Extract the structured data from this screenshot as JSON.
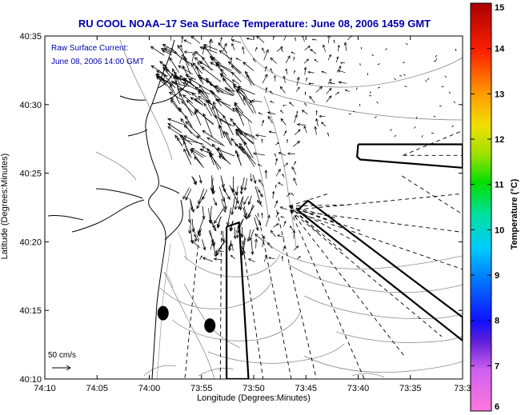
{
  "chart_data": {
    "type": "map",
    "title": "RU COOL  NOAA–17  Sea Surface Temperature:  June 08, 2006 1459 GMT",
    "annotation": [
      "Raw Surface Current:",
      "June 08, 2006 14:00 GMT"
    ],
    "xlabel": "Longitude (Degrees:Minutes)",
    "ylabel": "Latitude (Degrees:Minutes)",
    "x_ticks": [
      "74:10",
      "74:05",
      "74:00",
      "73:55",
      "73:50",
      "73:45",
      "73:40",
      "73:35",
      "73:3"
    ],
    "y_ticks": [
      "40:10",
      "40:15",
      "40:20",
      "40:25",
      "40:30",
      "40:35"
    ],
    "xlim": [
      -74.1667,
      -73.5
    ],
    "ylim": [
      40.1667,
      40.5833
    ],
    "scale_label": "50 cm/s",
    "scale_cm_s": 50,
    "colorbar": {
      "label": "Temperature (°C)",
      "min": 6,
      "max": 15,
      "ticks": [
        "15",
        "14",
        "13",
        "12",
        "11",
        "10",
        "9",
        "8",
        "7",
        "6"
      ]
    },
    "markers": [
      {
        "lon": -73.978,
        "lat": 40.2467
      },
      {
        "lon": -73.9033,
        "lat": 40.2317
      }
    ],
    "radials": [
      {
        "type": "dashed",
        "from": [
          -73.595,
          40.4383
        ],
        "to": [
          -73.5,
          40.4683
        ]
      },
      {
        "type": "dashed",
        "from": [
          -73.595,
          40.4383
        ],
        "to": [
          -73.5,
          40.4383
        ]
      },
      {
        "type": "dashed",
        "from": [
          -73.5967,
          40.4133
        ],
        "to": [
          -73.5,
          40.3667
        ]
      },
      {
        "type": "dashed",
        "from": [
          -73.775,
          40.3717
        ],
        "to": [
          -73.5,
          40.3917
        ]
      },
      {
        "type": "dashed",
        "from": [
          -73.775,
          40.3717
        ],
        "to": [
          -73.5,
          40.345
        ]
      },
      {
        "type": "dashed",
        "from": [
          -73.775,
          40.3717
        ],
        "to": [
          -73.5,
          40.3
        ]
      },
      {
        "type": "dashed",
        "from": [
          -73.775,
          40.3717
        ],
        "to": [
          -73.5333,
          40.2183
        ]
      },
      {
        "type": "dashed",
        "from": [
          -73.775,
          40.3717
        ],
        "to": [
          -73.5917,
          40.1933
        ]
      },
      {
        "type": "dashed",
        "from": [
          -73.775,
          40.3717
        ],
        "to": [
          -73.6567,
          40.1667
        ]
      },
      {
        "type": "dashed",
        "from": [
          -73.7967,
          40.3717
        ],
        "to": [
          -73.7333,
          40.1667
        ]
      },
      {
        "type": "dashed",
        "from": [
          -73.8267,
          40.3683
        ],
        "to": [
          -73.7733,
          40.1667
        ]
      },
      {
        "type": "dashed",
        "from": [
          -73.8533,
          40.3433
        ],
        "to": [
          -73.8183,
          40.1667
        ]
      },
      {
        "type": "dashed",
        "from": [
          -73.885,
          40.3467
        ],
        "to": [
          -73.8867,
          40.1667
        ]
      },
      {
        "type": "dashed",
        "from": [
          -73.92,
          40.3467
        ],
        "to": [
          -73.9433,
          40.1667
        ]
      },
      {
        "type": "dashed",
        "from": [
          -73.7767,
          40.3767
        ],
        "to": [
          -73.715,
          40.3917
        ]
      },
      {
        "type": "dashed",
        "from": [
          -73.7767,
          40.3767
        ],
        "to": [
          -73.68,
          40.3783
        ]
      },
      {
        "type": "dashed",
        "from": [
          -73.7767,
          40.3767
        ],
        "to": [
          -73.7,
          40.355
        ]
      },
      {
        "type": "dashed",
        "from": [
          -73.7767,
          40.3767
        ],
        "to": [
          -73.6633,
          40.3467
        ]
      },
      {
        "type": "dashed",
        "from": [
          -73.7767,
          40.3767
        ],
        "to": [
          -73.7,
          40.3617
        ]
      },
      {
        "type": "dashed",
        "from": [
          -73.7767,
          40.3767
        ],
        "to": [
          -73.7267,
          40.3417
        ]
      },
      {
        "type": "dashed",
        "from": [
          -73.7767,
          40.3767
        ],
        "to": [
          -73.6667,
          40.3317
        ]
      },
      {
        "type": "dashed",
        "from": [
          -73.7767,
          40.3767
        ],
        "to": [
          -73.6917,
          40.3217
        ]
      }
    ],
    "boundary_polygons": [
      [
        [
          -73.6667,
          40.4517
        ],
        [
          -73.5,
          40.4517
        ],
        [
          -73.5,
          40.4233
        ],
        [
          -73.6633,
          40.4333
        ],
        [
          -73.6683,
          40.4367
        ],
        [
          -73.6667,
          40.4517
        ]
      ],
      [
        [
          -73.7633,
          40.3717
        ],
        [
          -73.7467,
          40.3833
        ],
        [
          -73.5,
          40.2417
        ],
        [
          -73.5,
          40.2133
        ],
        [
          -73.7633,
          40.3717
        ]
      ],
      [
        [
          -73.8767,
          40.3517
        ],
        [
          -73.8567,
          40.3567
        ],
        [
          -73.8417,
          40.1667
        ],
        [
          -73.8767,
          40.1667
        ],
        [
          -73.8767,
          40.3517
        ]
      ]
    ]
  }
}
